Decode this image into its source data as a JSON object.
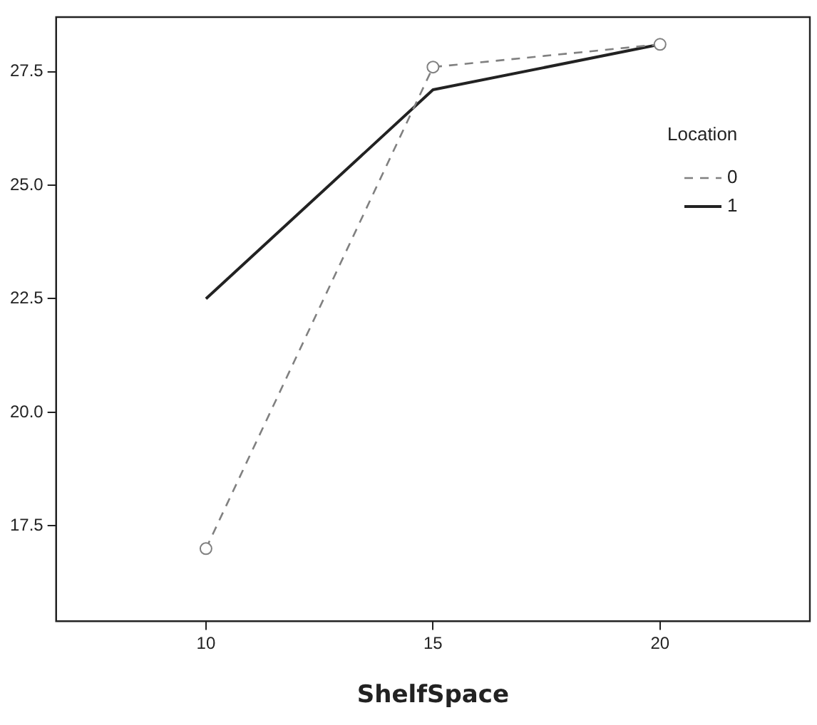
{
  "chart_data": {
    "type": "line",
    "xlabel": "ShelfSpace",
    "legend_title": "Location",
    "x": [
      10,
      15,
      20
    ],
    "series": [
      {
        "name": "0",
        "color": "#808080",
        "values": [
          17.0,
          27.6,
          28.1
        ],
        "line_style": "dashed",
        "marker": "circle"
      },
      {
        "name": "1",
        "color": "#222222",
        "values": [
          22.5,
          27.1,
          28.1
        ],
        "line_style": "solid",
        "marker": "none"
      }
    ],
    "xlim": [
      6.7,
      23.3
    ],
    "xticks": [
      10,
      15,
      20
    ],
    "ylim": [
      15.4,
      28.7
    ],
    "yticks": [
      17.5,
      {
        "value": 20,
        "label": "20.0"
      },
      22.5,
      {
        "value": 25,
        "label": "25.0"
      },
      27.5
    ],
    "grid": false,
    "legend": "top right"
  }
}
